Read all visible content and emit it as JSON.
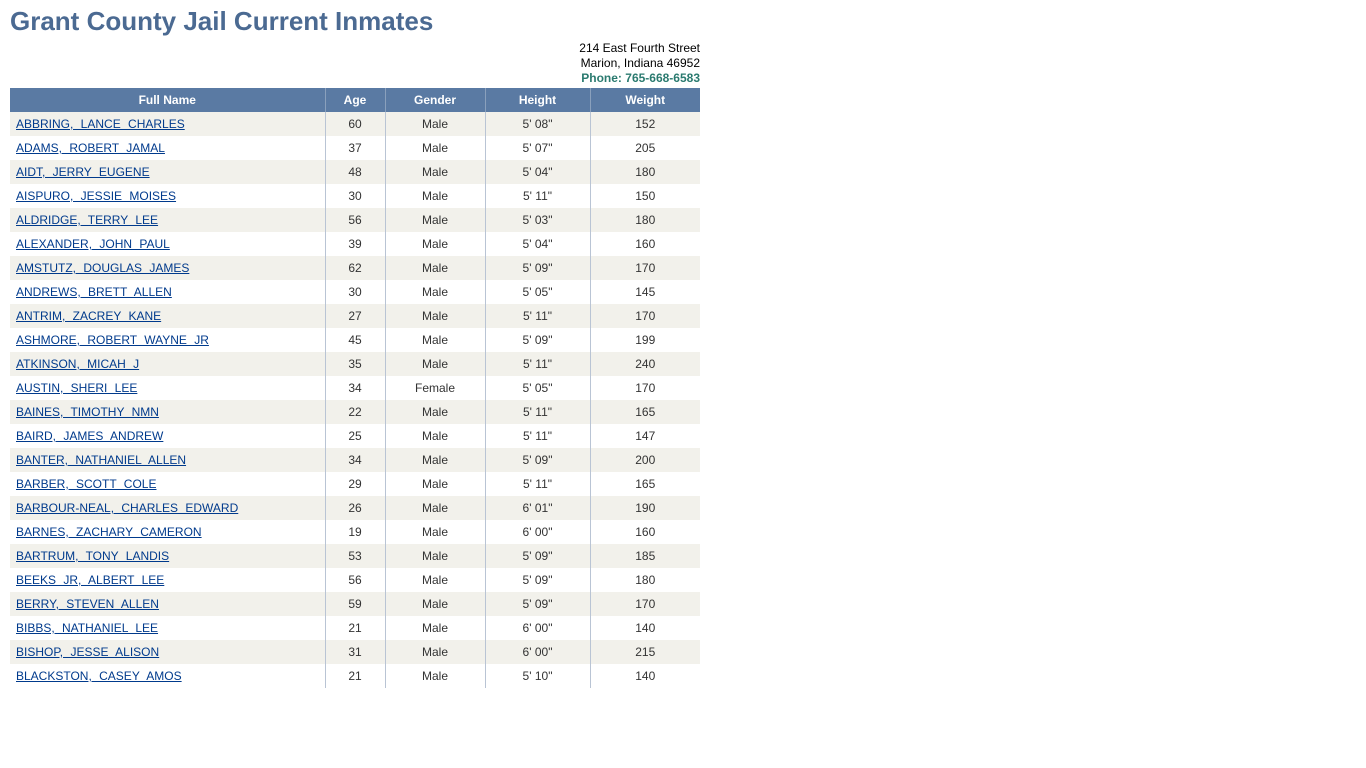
{
  "title": "Grant County Jail Current Inmates",
  "address": {
    "line1": "214 East Fourth Street",
    "line2": "Marion, Indiana 46952",
    "phone_label": "Phone: 765-668-6583"
  },
  "table": {
    "columns": [
      "Full Name",
      "Age",
      "Gender",
      "Height",
      "Weight"
    ],
    "rows": [
      {
        "name": "ABBRING, LANCE CHARLES",
        "age": "60",
        "gender": "Male",
        "height": "5' 08\"",
        "weight": "152"
      },
      {
        "name": "ADAMS, ROBERT JAMAL",
        "age": "37",
        "gender": "Male",
        "height": "5' 07\"",
        "weight": "205"
      },
      {
        "name": "AIDT, JERRY EUGENE",
        "age": "48",
        "gender": "Male",
        "height": "5' 04\"",
        "weight": "180"
      },
      {
        "name": "AISPURO, JESSIE MOISES",
        "age": "30",
        "gender": "Male",
        "height": "5' 11\"",
        "weight": "150"
      },
      {
        "name": "ALDRIDGE, TERRY LEE",
        "age": "56",
        "gender": "Male",
        "height": "5' 03\"",
        "weight": "180"
      },
      {
        "name": "ALEXANDER, JOHN PAUL",
        "age": "39",
        "gender": "Male",
        "height": "5' 04\"",
        "weight": "160"
      },
      {
        "name": "AMSTUTZ, DOUGLAS JAMES",
        "age": "62",
        "gender": "Male",
        "height": "5' 09\"",
        "weight": "170"
      },
      {
        "name": "ANDREWS, BRETT ALLEN",
        "age": "30",
        "gender": "Male",
        "height": "5' 05\"",
        "weight": "145"
      },
      {
        "name": "ANTRIM, ZACREY KANE",
        "age": "27",
        "gender": "Male",
        "height": "5' 11\"",
        "weight": "170"
      },
      {
        "name": "ASHMORE, ROBERT WAYNE JR",
        "age": "45",
        "gender": "Male",
        "height": "5' 09\"",
        "weight": "199"
      },
      {
        "name": "ATKINSON, MICAH J",
        "age": "35",
        "gender": "Male",
        "height": "5' 11\"",
        "weight": "240"
      },
      {
        "name": "AUSTIN, SHERI LEE",
        "age": "34",
        "gender": "Female",
        "height": "5' 05\"",
        "weight": "170"
      },
      {
        "name": "BAINES, TIMOTHY NMN",
        "age": "22",
        "gender": "Male",
        "height": "5' 11\"",
        "weight": "165"
      },
      {
        "name": "BAIRD, JAMES ANDREW",
        "age": "25",
        "gender": "Male",
        "height": "5' 11\"",
        "weight": "147"
      },
      {
        "name": "BANTER, NATHANIEL ALLEN",
        "age": "34",
        "gender": "Male",
        "height": "5' 09\"",
        "weight": "200"
      },
      {
        "name": "BARBER, SCOTT COLE",
        "age": "29",
        "gender": "Male",
        "height": "5' 11\"",
        "weight": "165"
      },
      {
        "name": "BARBOUR-NEAL, CHARLES EDWARD",
        "age": "26",
        "gender": "Male",
        "height": "6' 01\"",
        "weight": "190"
      },
      {
        "name": "BARNES, ZACHARY CAMERON",
        "age": "19",
        "gender": "Male",
        "height": "6' 00\"",
        "weight": "160"
      },
      {
        "name": "BARTRUM, TONY LANDIS",
        "age": "53",
        "gender": "Male",
        "height": "5' 09\"",
        "weight": "185"
      },
      {
        "name": "BEEKS JR, ALBERT LEE",
        "age": "56",
        "gender": "Male",
        "height": "5' 09\"",
        "weight": "180"
      },
      {
        "name": "BERRY, STEVEN ALLEN",
        "age": "59",
        "gender": "Male",
        "height": "5' 09\"",
        "weight": "170"
      },
      {
        "name": "BIBBS, NATHANIEL LEE",
        "age": "21",
        "gender": "Male",
        "height": "6' 00\"",
        "weight": "140"
      },
      {
        "name": "BISHOP, JESSE ALISON",
        "age": "31",
        "gender": "Male",
        "height": "6' 00\"",
        "weight": "215"
      },
      {
        "name": "BLACKSTON, CASEY AMOS",
        "age": "21",
        "gender": "Male",
        "height": "5' 10\"",
        "weight": "140"
      }
    ]
  },
  "colors": {
    "title": "#4b6a92",
    "header_bg": "#5a7aa3",
    "header_text": "#ffffff",
    "row_odd_bg": "#f2f1eb",
    "row_even_bg": "#ffffff",
    "link": "#003a8c",
    "phone": "#2a7a6f",
    "cell_border": "#b9c4d4"
  }
}
